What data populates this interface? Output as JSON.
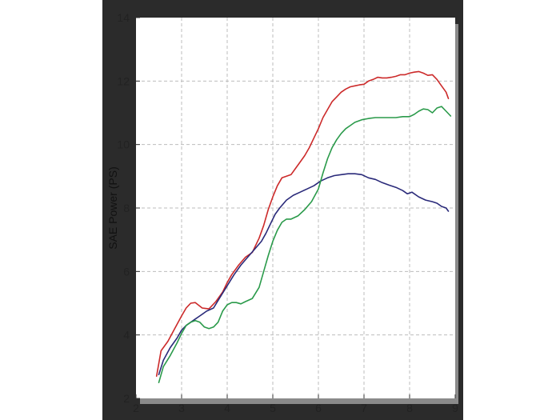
{
  "chart_data": {
    "type": "line",
    "ylabel": "SAE Power (PS)",
    "xlim": [
      2,
      9
    ],
    "ylim": [
      2,
      14
    ],
    "x_ticks": [
      2,
      3,
      4,
      5,
      6,
      7,
      8,
      9
    ],
    "y_ticks": [
      2,
      4,
      6,
      8,
      10,
      12,
      14
    ],
    "grid": true,
    "colors": {
      "frame": "#2b2b2b",
      "plot_bg": "#ffffff",
      "shadow": "#8a8a8a",
      "grid": "#bdbdbd"
    },
    "series": [
      {
        "color": "#cc2a2a",
        "x": [
          2.45,
          2.55,
          2.7,
          2.85,
          3.0,
          3.1,
          3.2,
          3.3,
          3.45,
          3.6,
          3.75,
          3.9,
          4.0,
          4.1,
          4.25,
          4.4,
          4.55,
          4.7,
          4.8,
          4.9,
          5.0,
          5.1,
          5.2,
          5.3,
          5.4,
          5.5,
          5.6,
          5.7,
          5.8,
          5.9,
          6.0,
          6.1,
          6.2,
          6.3,
          6.4,
          6.5,
          6.6,
          6.7,
          6.8,
          6.9,
          7.0,
          7.1,
          7.2,
          7.3,
          7.4,
          7.5,
          7.6,
          7.7,
          7.8,
          7.9,
          8.0,
          8.1,
          8.2,
          8.3,
          8.4,
          8.5,
          8.6,
          8.7,
          8.8,
          8.85
        ],
        "values": [
          2.7,
          3.5,
          3.8,
          4.2,
          4.6,
          4.85,
          5.0,
          5.02,
          4.85,
          4.82,
          5.05,
          5.35,
          5.65,
          5.9,
          6.2,
          6.45,
          6.6,
          7.05,
          7.45,
          7.95,
          8.35,
          8.7,
          8.95,
          9.0,
          9.05,
          9.25,
          9.45,
          9.65,
          9.9,
          10.2,
          10.5,
          10.85,
          11.1,
          11.35,
          11.5,
          11.65,
          11.75,
          11.82,
          11.85,
          11.88,
          11.9,
          12.0,
          12.05,
          12.12,
          12.1,
          12.1,
          12.12,
          12.15,
          12.2,
          12.2,
          12.25,
          12.28,
          12.3,
          12.25,
          12.18,
          12.2,
          12.05,
          11.85,
          11.65,
          11.45
        ]
      },
      {
        "color": "#2a2a7a",
        "x": [
          2.5,
          2.6,
          2.75,
          2.9,
          3.0,
          3.1,
          3.2,
          3.3,
          3.4,
          3.55,
          3.7,
          3.85,
          4.0,
          4.15,
          4.3,
          4.45,
          4.6,
          4.75,
          4.85,
          4.95,
          5.05,
          5.15,
          5.3,
          5.45,
          5.6,
          5.75,
          5.9,
          6.05,
          6.2,
          6.35,
          6.5,
          6.65,
          6.8,
          6.95,
          7.1,
          7.25,
          7.4,
          7.55,
          7.7,
          7.85,
          7.95,
          8.05,
          8.2,
          8.35,
          8.5,
          8.6,
          8.7,
          8.8,
          8.85
        ],
        "values": [
          2.75,
          3.2,
          3.6,
          3.9,
          4.15,
          4.3,
          4.4,
          4.5,
          4.6,
          4.75,
          4.85,
          5.2,
          5.55,
          5.9,
          6.2,
          6.45,
          6.7,
          6.95,
          7.2,
          7.5,
          7.8,
          8.0,
          8.25,
          8.4,
          8.5,
          8.6,
          8.7,
          8.85,
          8.95,
          9.02,
          9.05,
          9.08,
          9.08,
          9.05,
          8.95,
          8.9,
          8.8,
          8.72,
          8.65,
          8.55,
          8.45,
          8.5,
          8.35,
          8.25,
          8.2,
          8.15,
          8.05,
          8.0,
          7.9
        ]
      },
      {
        "color": "#2a9a4a",
        "x": [
          2.5,
          2.6,
          2.75,
          2.9,
          3.0,
          3.1,
          3.2,
          3.3,
          3.4,
          3.5,
          3.6,
          3.7,
          3.8,
          3.9,
          4.0,
          4.1,
          4.2,
          4.3,
          4.4,
          4.55,
          4.7,
          4.8,
          4.9,
          5.0,
          5.1,
          5.2,
          5.3,
          5.4,
          5.55,
          5.7,
          5.85,
          6.0,
          6.1,
          6.2,
          6.3,
          6.4,
          6.5,
          6.6,
          6.7,
          6.8,
          6.95,
          7.1,
          7.25,
          7.4,
          7.55,
          7.7,
          7.85,
          8.0,
          8.1,
          8.2,
          8.3,
          8.4,
          8.5,
          8.6,
          8.7,
          8.8,
          8.9
        ],
        "values": [
          2.5,
          3.0,
          3.35,
          3.75,
          4.05,
          4.3,
          4.4,
          4.45,
          4.4,
          4.25,
          4.2,
          4.25,
          4.4,
          4.75,
          4.95,
          5.02,
          5.02,
          4.98,
          5.05,
          5.15,
          5.5,
          6.0,
          6.5,
          6.95,
          7.3,
          7.55,
          7.65,
          7.65,
          7.75,
          7.95,
          8.2,
          8.6,
          9.1,
          9.55,
          9.9,
          10.15,
          10.35,
          10.5,
          10.6,
          10.7,
          10.78,
          10.82,
          10.85,
          10.85,
          10.85,
          10.85,
          10.88,
          10.88,
          10.95,
          11.05,
          11.12,
          11.1,
          11.0,
          11.15,
          11.2,
          11.05,
          10.9
        ]
      }
    ]
  }
}
